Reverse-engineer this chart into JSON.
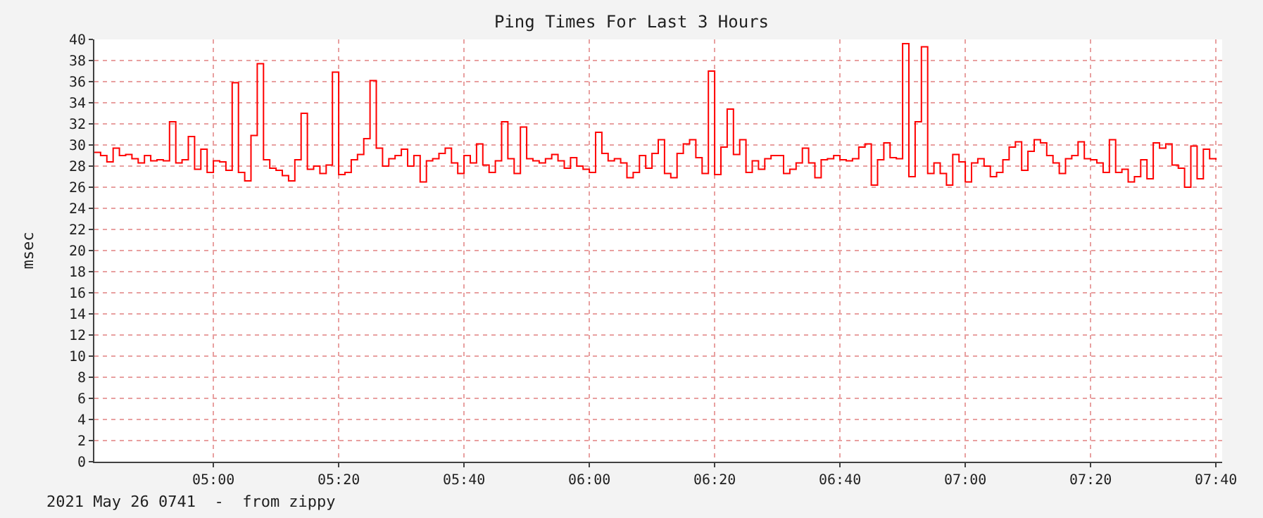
{
  "chart_data": {
    "type": "step",
    "title": "Ping Times For Last 3 Hours",
    "ylabel": "msec",
    "annotations": [
      "2021 May 26 0741  -  from zippy"
    ],
    "x": [
      "2021-05-26T04:41",
      "2021-05-26T04:42",
      "2021-05-26T04:43",
      "2021-05-26T04:44",
      "2021-05-26T04:45",
      "2021-05-26T04:46",
      "2021-05-26T04:47",
      "2021-05-26T04:48",
      "2021-05-26T04:49",
      "2021-05-26T04:50",
      "2021-05-26T04:51",
      "2021-05-26T04:52",
      "2021-05-26T04:53",
      "2021-05-26T04:54",
      "2021-05-26T04:55",
      "2021-05-26T04:56",
      "2021-05-26T04:57",
      "2021-05-26T04:58",
      "2021-05-26T04:59",
      "2021-05-26T05:00",
      "2021-05-26T05:01",
      "2021-05-26T05:02",
      "2021-05-26T05:03",
      "2021-05-26T05:04",
      "2021-05-26T05:05",
      "2021-05-26T05:06",
      "2021-05-26T05:07",
      "2021-05-26T05:08",
      "2021-05-26T05:09",
      "2021-05-26T05:10",
      "2021-05-26T05:11",
      "2021-05-26T05:12",
      "2021-05-26T05:13",
      "2021-05-26T05:14",
      "2021-05-26T05:15",
      "2021-05-26T05:16",
      "2021-05-26T05:17",
      "2021-05-26T05:18",
      "2021-05-26T05:19",
      "2021-05-26T05:20",
      "2021-05-26T05:21",
      "2021-05-26T05:22",
      "2021-05-26T05:23",
      "2021-05-26T05:24",
      "2021-05-26T05:25",
      "2021-05-26T05:26",
      "2021-05-26T05:27",
      "2021-05-26T05:28",
      "2021-05-26T05:29",
      "2021-05-26T05:30",
      "2021-05-26T05:31",
      "2021-05-26T05:32",
      "2021-05-26T05:33",
      "2021-05-26T05:34",
      "2021-05-26T05:35",
      "2021-05-26T05:36",
      "2021-05-26T05:37",
      "2021-05-26T05:38",
      "2021-05-26T05:39",
      "2021-05-26T05:40",
      "2021-05-26T05:41",
      "2021-05-26T05:42",
      "2021-05-26T05:43",
      "2021-05-26T05:44",
      "2021-05-26T05:45",
      "2021-05-26T05:46",
      "2021-05-26T05:47",
      "2021-05-26T05:48",
      "2021-05-26T05:49",
      "2021-05-26T05:50",
      "2021-05-26T05:51",
      "2021-05-26T05:52",
      "2021-05-26T05:53",
      "2021-05-26T05:54",
      "2021-05-26T05:55",
      "2021-05-26T05:56",
      "2021-05-26T05:57",
      "2021-05-26T05:58",
      "2021-05-26T05:59",
      "2021-05-26T06:00",
      "2021-05-26T06:01",
      "2021-05-26T06:02",
      "2021-05-26T06:03",
      "2021-05-26T06:04",
      "2021-05-26T06:05",
      "2021-05-26T06:06",
      "2021-05-26T06:07",
      "2021-05-26T06:08",
      "2021-05-26T06:09",
      "2021-05-26T06:10",
      "2021-05-26T06:11",
      "2021-05-26T06:12",
      "2021-05-26T06:13",
      "2021-05-26T06:14",
      "2021-05-26T06:15",
      "2021-05-26T06:16",
      "2021-05-26T06:17",
      "2021-05-26T06:18",
      "2021-05-26T06:19",
      "2021-05-26T06:20",
      "2021-05-26T06:21",
      "2021-05-26T06:22",
      "2021-05-26T06:23",
      "2021-05-26T06:24",
      "2021-05-26T06:25",
      "2021-05-26T06:26",
      "2021-05-26T06:27",
      "2021-05-26T06:28",
      "2021-05-26T06:29",
      "2021-05-26T06:30",
      "2021-05-26T06:31",
      "2021-05-26T06:32",
      "2021-05-26T06:33",
      "2021-05-26T06:34",
      "2021-05-26T06:35",
      "2021-05-26T06:36",
      "2021-05-26T06:37",
      "2021-05-26T06:38",
      "2021-05-26T06:39",
      "2021-05-26T06:40",
      "2021-05-26T06:41",
      "2021-05-26T06:42",
      "2021-05-26T06:43",
      "2021-05-26T06:44",
      "2021-05-26T06:45",
      "2021-05-26T06:46",
      "2021-05-26T06:47",
      "2021-05-26T06:48",
      "2021-05-26T06:49",
      "2021-05-26T06:50",
      "2021-05-26T06:51",
      "2021-05-26T06:52",
      "2021-05-26T06:53",
      "2021-05-26T06:54",
      "2021-05-26T06:55",
      "2021-05-26T06:56",
      "2021-05-26T06:57",
      "2021-05-26T06:58",
      "2021-05-26T06:59",
      "2021-05-26T07:00",
      "2021-05-26T07:01",
      "2021-05-26T07:02",
      "2021-05-26T07:03",
      "2021-05-26T07:04",
      "2021-05-26T07:05",
      "2021-05-26T07:06",
      "2021-05-26T07:07",
      "2021-05-26T07:08",
      "2021-05-26T07:09",
      "2021-05-26T07:10",
      "2021-05-26T07:11",
      "2021-05-26T07:12",
      "2021-05-26T07:13",
      "2021-05-26T07:14",
      "2021-05-26T07:15",
      "2021-05-26T07:16",
      "2021-05-26T07:17",
      "2021-05-26T07:18",
      "2021-05-26T07:19",
      "2021-05-26T07:20",
      "2021-05-26T07:21",
      "2021-05-26T07:22",
      "2021-05-26T07:23",
      "2021-05-26T07:24",
      "2021-05-26T07:25",
      "2021-05-26T07:26",
      "2021-05-26T07:27",
      "2021-05-26T07:28",
      "2021-05-26T07:29",
      "2021-05-26T07:30",
      "2021-05-26T07:31",
      "2021-05-26T07:32",
      "2021-05-26T07:33",
      "2021-05-26T07:34",
      "2021-05-26T07:35",
      "2021-05-26T07:36",
      "2021-05-26T07:37",
      "2021-05-26T07:38",
      "2021-05-26T07:39",
      "2021-05-26T07:40"
    ],
    "series": [
      {
        "color": "#ff0000",
        "values": [
          29.3,
          29.0,
          28.4,
          29.7,
          29.0,
          29.1,
          28.7,
          28.3,
          29.0,
          28.5,
          28.6,
          28.5,
          32.2,
          28.3,
          28.6,
          30.8,
          27.7,
          29.6,
          27.4,
          28.5,
          28.4,
          27.6,
          35.9,
          27.4,
          26.6,
          30.9,
          37.7,
          28.6,
          27.8,
          27.6,
          27.1,
          26.6,
          28.6,
          33.0,
          27.7,
          28.0,
          27.3,
          28.1,
          36.9,
          27.2,
          27.4,
          28.6,
          29.1,
          30.6,
          36.1,
          29.7,
          28.0,
          28.7,
          29.0,
          29.6,
          28.0,
          29.0,
          26.5,
          28.5,
          28.7,
          29.2,
          29.7,
          28.3,
          27.3,
          29.0,
          28.3,
          30.1,
          28.1,
          27.4,
          28.5,
          32.2,
          28.7,
          27.3,
          31.7,
          28.7,
          28.5,
          28.3,
          28.7,
          29.1,
          28.5,
          27.8,
          28.8,
          28.0,
          27.7,
          27.4,
          31.2,
          29.2,
          28.5,
          28.7,
          28.3,
          26.9,
          27.4,
          29.0,
          27.8,
          29.2,
          30.5,
          27.3,
          26.9,
          29.2,
          30.1,
          30.5,
          28.8,
          27.3,
          37.0,
          27.2,
          29.8,
          33.4,
          29.1,
          30.5,
          27.4,
          28.5,
          27.7,
          28.7,
          29.0,
          29.0,
          27.3,
          27.7,
          28.3,
          29.7,
          28.3,
          26.9,
          28.6,
          28.7,
          29.0,
          28.6,
          28.5,
          28.7,
          29.8,
          30.1,
          26.2,
          28.6,
          30.2,
          28.8,
          28.7,
          39.6,
          27.0,
          32.2,
          39.3,
          27.3,
          28.3,
          27.3,
          26.2,
          29.1,
          28.4,
          26.5,
          28.3,
          28.7,
          28.0,
          27.0,
          27.4,
          28.6,
          29.8,
          30.3,
          27.6,
          29.4,
          30.5,
          30.2,
          29.0,
          28.3,
          27.3,
          28.7,
          29.0,
          30.3,
          28.7,
          28.6,
          28.3,
          27.4,
          30.5,
          27.4,
          27.7,
          26.5,
          27.0,
          28.6,
          26.8,
          30.2,
          29.7,
          30.1,
          28.1,
          27.8,
          26.0,
          29.9,
          26.8,
          29.6,
          28.7,
          28.6
        ]
      }
    ],
    "xlim": [
      "2021-05-26T04:41",
      "2021-05-26T07:41"
    ],
    "xticks": [
      {
        "value": "2021-05-26T05:00",
        "label": "05:00"
      },
      {
        "value": "2021-05-26T05:20",
        "label": "05:20"
      },
      {
        "value": "2021-05-26T05:40",
        "label": "05:40"
      },
      {
        "value": "2021-05-26T06:00",
        "label": "06:00"
      },
      {
        "value": "2021-05-26T06:20",
        "label": "06:20"
      },
      {
        "value": "2021-05-26T06:40",
        "label": "06:40"
      },
      {
        "value": "2021-05-26T07:00",
        "label": "07:00"
      },
      {
        "value": "2021-05-26T07:20",
        "label": "07:20"
      },
      {
        "value": "2021-05-26T07:40",
        "label": "07:40"
      }
    ],
    "ylim": [
      0,
      40
    ],
    "yticks": [
      0,
      2,
      4,
      6,
      8,
      10,
      12,
      14,
      16,
      18,
      20,
      22,
      24,
      26,
      28,
      30,
      32,
      34,
      36,
      38,
      40
    ],
    "grid": true,
    "marker": "none",
    "line_style": "solid"
  }
}
